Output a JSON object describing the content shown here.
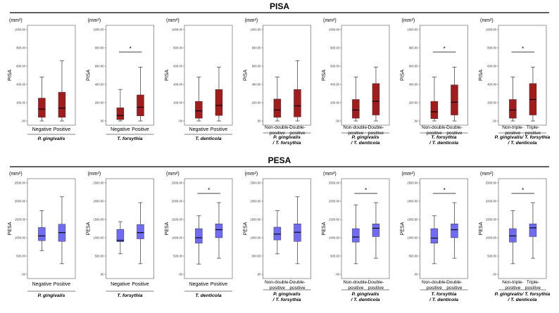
{
  "colors": {
    "pisa_fill": "#a11d1d",
    "pesa_fill": "#6f6bf2",
    "whisker": "#333333",
    "median": "#000000",
    "frame": "#555555",
    "rule": "#000000"
  },
  "sections": [
    {
      "title": "PISA",
      "ylabel": "PISA",
      "unit": "(mm²)",
      "ylim": [
        0,
        1000
      ],
      "ticks": [
        ".00",
        "200.00",
        "400.00",
        "600.00",
        "800.00",
        "1000.00"
      ]
    },
    {
      "title": "PESA",
      "ylabel": "PESA",
      "unit": "(mm²)",
      "ylim": [
        0,
        2500
      ],
      "ticks": [
        ".00",
        "500.00",
        "1000.00",
        "1500.00",
        "2000.00",
        "2500.00"
      ]
    }
  ],
  "chart_data": [
    {
      "type": "box",
      "section": "PISA",
      "ylabel": "PISA",
      "ylim": [
        0,
        1000
      ],
      "categories": [
        "Negative",
        "Positive"
      ],
      "group_label": [
        "P. gingivalis"
      ],
      "significant": false,
      "boxes": [
        {
          "min": 0,
          "q1": 40,
          "median": 130,
          "q3": 250,
          "max": 480
        },
        {
          "min": 0,
          "q1": 40,
          "median": 140,
          "q3": 315,
          "max": 660
        }
      ]
    },
    {
      "type": "box",
      "section": "PISA",
      "ylabel": "PISA",
      "ylim": [
        0,
        1000
      ],
      "categories": [
        "Negative",
        "Positive"
      ],
      "group_label": [
        "T. forsythia"
      ],
      "significant": true,
      "significance_label": "*",
      "boxes": [
        {
          "min": 0,
          "q1": 15,
          "median": 60,
          "q3": 145,
          "max": 345
        },
        {
          "min": 0,
          "q1": 55,
          "median": 150,
          "q3": 285,
          "max": 590
        }
      ]
    },
    {
      "type": "box",
      "section": "PISA",
      "ylabel": "PISA",
      "ylim": [
        0,
        1000
      ],
      "categories": [
        "Negative",
        "Positive"
      ],
      "group_label": [
        "T. denticola"
      ],
      "significant": false,
      "boxes": [
        {
          "min": 0,
          "q1": 30,
          "median": 110,
          "q3": 215,
          "max": 480
        },
        {
          "min": 0,
          "q1": 60,
          "median": 170,
          "q3": 345,
          "max": 590
        }
      ]
    },
    {
      "type": "box",
      "section": "PISA",
      "ylabel": "PISA",
      "ylim": [
        0,
        1000
      ],
      "categories": [
        "Non-double-positive",
        "Double-positive"
      ],
      "group_label": [
        "P. gingivalis",
        "/ T. forsythia"
      ],
      "significant": false,
      "boxes": [
        {
          "min": 0,
          "q1": 40,
          "median": 120,
          "q3": 240,
          "max": 480
        },
        {
          "min": 0,
          "q1": 45,
          "median": 165,
          "q3": 345,
          "max": 660
        }
      ]
    },
    {
      "type": "box",
      "section": "PISA",
      "ylabel": "PISA",
      "ylim": [
        0,
        1000
      ],
      "categories": [
        "Non-double-positive",
        "Double-positive"
      ],
      "group_label": [
        "P. gingivalis",
        "/ T. denticola"
      ],
      "significant": false,
      "boxes": [
        {
          "min": 0,
          "q1": 30,
          "median": 120,
          "q3": 235,
          "max": 480
        },
        {
          "min": 0,
          "q1": 65,
          "median": 215,
          "q3": 410,
          "max": 590
        }
      ]
    },
    {
      "type": "box",
      "section": "PISA",
      "ylabel": "PISA",
      "ylim": [
        0,
        1000
      ],
      "categories": [
        "Non-double-positive",
        "Double-positive"
      ],
      "group_label": [
        "T. forsythia",
        "/ T. denticola"
      ],
      "significant": true,
      "significance_label": "*",
      "boxes": [
        {
          "min": 0,
          "q1": 25,
          "median": 100,
          "q3": 215,
          "max": 480
        },
        {
          "min": 0,
          "q1": 65,
          "median": 205,
          "q3": 395,
          "max": 590
        }
      ]
    },
    {
      "type": "box",
      "section": "PISA",
      "ylabel": "PISA",
      "ylim": [
        0,
        1000
      ],
      "categories": [
        "Non-triple-positive",
        "Triple-positive"
      ],
      "group_label": [
        "P. gingivalis/ T. forsythia",
        "/ T. denticola"
      ],
      "significant": true,
      "significance_label": "*",
      "boxes": [
        {
          "min": 0,
          "q1": 30,
          "median": 120,
          "q3": 235,
          "max": 480
        },
        {
          "min": 0,
          "q1": 65,
          "median": 235,
          "q3": 410,
          "max": 590
        }
      ]
    },
    {
      "type": "box",
      "section": "PESA",
      "ylabel": "PESA",
      "ylim": [
        0,
        2500
      ],
      "categories": [
        "Negative",
        "Positive"
      ],
      "group_label": [
        "P. gingivalis"
      ],
      "significant": false,
      "boxes": [
        {
          "min": 650,
          "q1": 920,
          "median": 1050,
          "q3": 1280,
          "max": 1740
        },
        {
          "min": 290,
          "q1": 900,
          "median": 1140,
          "q3": 1370,
          "max": 2120
        }
      ]
    },
    {
      "type": "box",
      "section": "PESA",
      "ylabel": "PESA",
      "ylim": [
        0,
        2500
      ],
      "categories": [
        "Negative",
        "Positive"
      ],
      "group_label": [
        "T. forsythia"
      ],
      "significant": false,
      "boxes": [
        {
          "min": 560,
          "q1": 890,
          "median": 930,
          "q3": 1230,
          "max": 1440
        },
        {
          "min": 290,
          "q1": 970,
          "median": 1140,
          "q3": 1360,
          "max": 1960
        }
      ]
    },
    {
      "type": "box",
      "section": "PESA",
      "ylabel": "PESA",
      "ylim": [
        0,
        2500
      ],
      "categories": [
        "Negative",
        "Positive"
      ],
      "group_label": [
        "T. denticola"
      ],
      "significant": true,
      "significance_label": "*",
      "boxes": [
        {
          "min": 280,
          "q1": 850,
          "median": 1000,
          "q3": 1250,
          "max": 1600
        },
        {
          "min": 440,
          "q1": 1000,
          "median": 1220,
          "q3": 1380,
          "max": 1960
        }
      ]
    },
    {
      "type": "box",
      "section": "PESA",
      "ylabel": "PESA",
      "ylim": [
        0,
        2500
      ],
      "categories": [
        "Non-double-positive",
        "Double-positive"
      ],
      "group_label": [
        "P. gingivalis",
        "/ T. forsythia"
      ],
      "significant": false,
      "boxes": [
        {
          "min": 560,
          "q1": 940,
          "median": 1100,
          "q3": 1290,
          "max": 1740
        },
        {
          "min": 290,
          "q1": 900,
          "median": 1150,
          "q3": 1380,
          "max": 2120
        }
      ]
    },
    {
      "type": "box",
      "section": "PESA",
      "ylabel": "PESA",
      "ylim": [
        0,
        2500
      ],
      "categories": [
        "Non-double-positive",
        "Double-positive"
      ],
      "group_label": [
        "P. gingivalis",
        "/ T. denticola"
      ],
      "significant": true,
      "significance_label": "*",
      "boxes": [
        {
          "min": 290,
          "q1": 880,
          "median": 1020,
          "q3": 1250,
          "max": 1900
        },
        {
          "min": 440,
          "q1": 1030,
          "median": 1260,
          "q3": 1380,
          "max": 1960
        }
      ]
    },
    {
      "type": "box",
      "section": "PESA",
      "ylabel": "PESA",
      "ylim": [
        0,
        2500
      ],
      "categories": [
        "Non-double-positive",
        "Double-positive"
      ],
      "group_label": [
        "T. forsythia",
        "/ T. denticola"
      ],
      "significant": true,
      "significance_label": "*",
      "boxes": [
        {
          "min": 290,
          "q1": 850,
          "median": 990,
          "q3": 1250,
          "max": 1600
        },
        {
          "min": 440,
          "q1": 1000,
          "median": 1220,
          "q3": 1380,
          "max": 1960
        }
      ]
    },
    {
      "type": "box",
      "section": "PESA",
      "ylabel": "PESA",
      "ylim": [
        0,
        2500
      ],
      "categories": [
        "Non-triple-positive",
        "Triple-positive"
      ],
      "group_label": [
        "P. gingivalis/ T. forsythia",
        "/ T. denticola"
      ],
      "significant": true,
      "significance_label": "*",
      "boxes": [
        {
          "min": 290,
          "q1": 880,
          "median": 1050,
          "q3": 1250,
          "max": 1740
        },
        {
          "min": 440,
          "q1": 1030,
          "median": 1270,
          "q3": 1380,
          "max": 1960
        }
      ]
    }
  ]
}
